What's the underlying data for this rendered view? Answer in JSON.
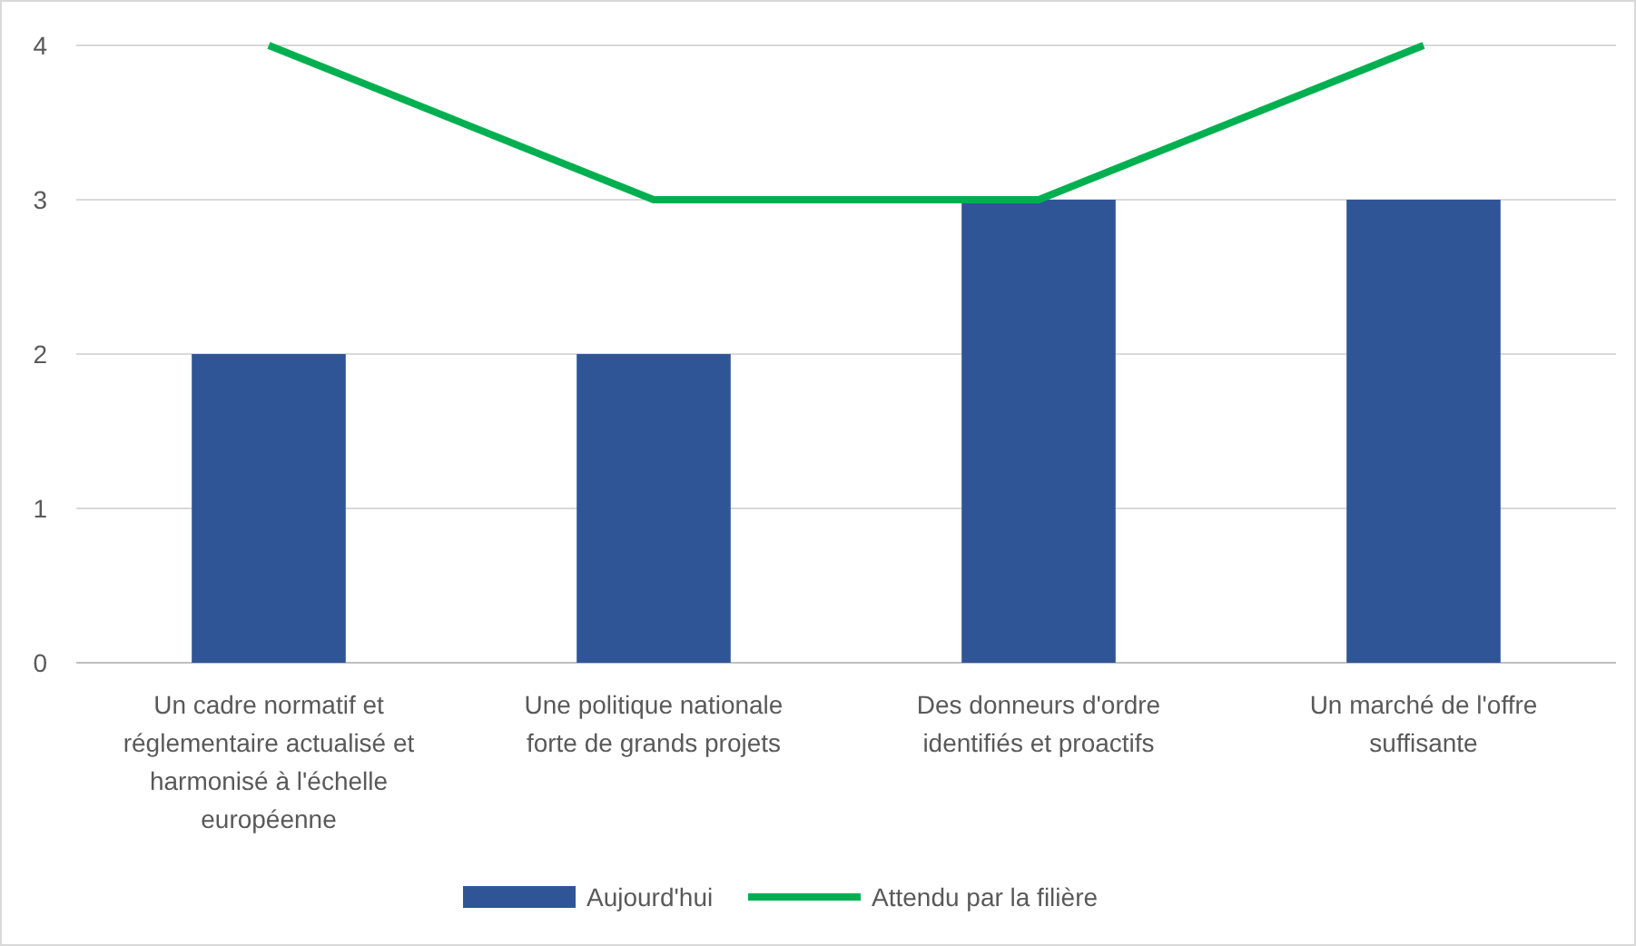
{
  "chart_data": {
    "type": "bar",
    "categories": [
      "Un cadre normatif et réglementaire actualisé et harmonisé à l'échelle européenne",
      "Une politique nationale forte de grands projets",
      "Des donneurs d'ordre identifiés et proactifs",
      "Un marché de l'offre suffisante"
    ],
    "series": [
      {
        "name": "Aujourd'hui",
        "color": "#2f5597",
        "values": [
          2,
          2,
          3,
          3
        ]
      },
      {
        "name": "Attendu par la filière",
        "type": "line",
        "color": "#00b050",
        "values": [
          4,
          3,
          3,
          4
        ]
      }
    ],
    "ylim": [
      0,
      4
    ],
    "yticks": [
      0,
      1,
      2,
      3,
      4
    ],
    "grid": "y",
    "legend": "bottom",
    "marker": "none"
  }
}
